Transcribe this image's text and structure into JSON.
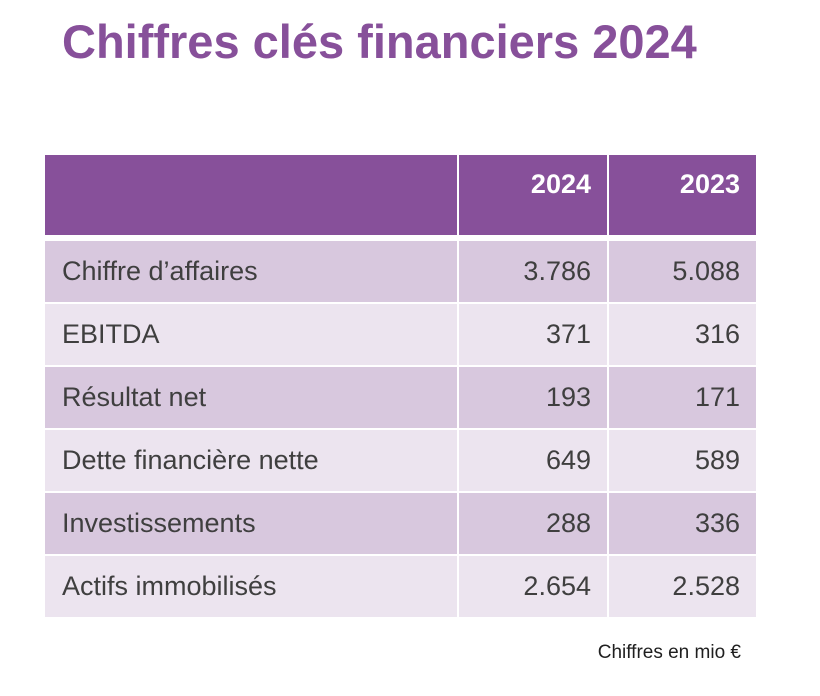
{
  "title": "Chiffres clés financiers 2024",
  "table": {
    "headers": [
      "",
      "2024",
      "2023"
    ],
    "rows": [
      {
        "label": "Chiffre d’affaires",
        "v2024": "3.786",
        "v2023": "5.088"
      },
      {
        "label": "EBITDA",
        "v2024": "371",
        "v2023": "316"
      },
      {
        "label": "Résultat net",
        "v2024": "193",
        "v2023": "171"
      },
      {
        "label": "Dette financière nette",
        "v2024": "649",
        "v2023": "589"
      },
      {
        "label": "Investissements",
        "v2024": "288",
        "v2023": "336"
      },
      {
        "label": "Actifs immobilisés",
        "v2024": "2.654",
        "v2023": "2.528"
      }
    ]
  },
  "note": "Chiffres en mio €",
  "colors": {
    "accent": "#87509a",
    "row_dark": "#d8c8de",
    "row_light": "#ece4ef"
  }
}
